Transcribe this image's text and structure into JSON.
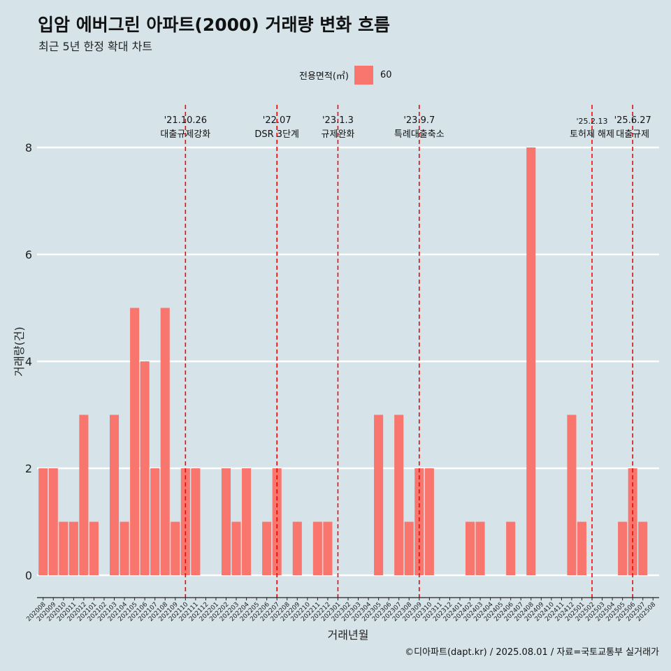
{
  "title": "입암 에버그린 아파트(2000) 거래량 변화 흐름",
  "subtitle": "최근 5년 한정 확대 차트",
  "legend": {
    "title": "전용면적(㎡)",
    "label": "60",
    "color": "#f8766d"
  },
  "caption": "©디아파트(dapt.kr) / 2025.08.01 / 자료=국토교통부 실거래가",
  "colors": {
    "background": "#d6e4ea",
    "bar": "#f8766d",
    "event_line": "#ff0000",
    "grid": "#ffffff"
  },
  "chart_data": {
    "type": "bar",
    "title": "입암 에버그린 아파트(2000) 거래량 변화 흐름",
    "subtitle": "최근 5년 한정 확대 차트",
    "xlabel": "거래년월",
    "ylabel": "거래량(건)",
    "ylim": [
      0,
      8
    ],
    "yticks": [
      0,
      2,
      4,
      6,
      8
    ],
    "grid": "horizontal",
    "legend_position": "top",
    "series": [
      {
        "name": "60"
      }
    ],
    "categories": [
      "202008",
      "202009",
      "202010",
      "202011",
      "202012",
      "202101",
      "202102",
      "202103",
      "202104",
      "202105",
      "202106",
      "202107",
      "202108",
      "202109",
      "202110",
      "202111",
      "202112",
      "202201",
      "202202",
      "202203",
      "202204",
      "202205",
      "202206",
      "202207",
      "202208",
      "202209",
      "202210",
      "202211",
      "202212",
      "202301",
      "202302",
      "202303",
      "202304",
      "202305",
      "202306",
      "202307",
      "202308",
      "202309",
      "202310",
      "202311",
      "202312",
      "202401",
      "202402",
      "202403",
      "202404",
      "202405",
      "202406",
      "202407",
      "202408",
      "202409",
      "202410",
      "202411",
      "202412",
      "202501",
      "202502",
      "202503",
      "202504",
      "202505",
      "202506",
      "202507",
      "202508"
    ],
    "values": [
      2,
      2,
      1,
      1,
      3,
      1,
      0,
      3,
      1,
      5,
      4,
      2,
      5,
      1,
      2,
      2,
      0,
      0,
      2,
      1,
      2,
      0,
      1,
      2,
      0,
      1,
      0,
      1,
      1,
      0,
      0,
      0,
      0,
      3,
      0,
      3,
      1,
      2,
      2,
      0,
      0,
      0,
      1,
      1,
      0,
      0,
      1,
      0,
      8,
      0,
      0,
      0,
      3,
      1,
      0,
      0,
      0,
      1,
      2,
      1,
      0
    ],
    "events": [
      {
        "category": "202110",
        "date": "'21.10.26",
        "label": "대출규제강화"
      },
      {
        "category": "202207",
        "date": "'22.07",
        "label": "DSR 3단계"
      },
      {
        "category": "202301",
        "date": "'23.1.3",
        "label": "규제완화"
      },
      {
        "category": "202309",
        "date": "'23.9.7",
        "label": "특례대출축소"
      },
      {
        "category": "202502",
        "date": "'25.2.13",
        "label": "토허제 해제"
      },
      {
        "category": "202506",
        "date": "'25.6.27",
        "label": "대출규제"
      }
    ]
  }
}
